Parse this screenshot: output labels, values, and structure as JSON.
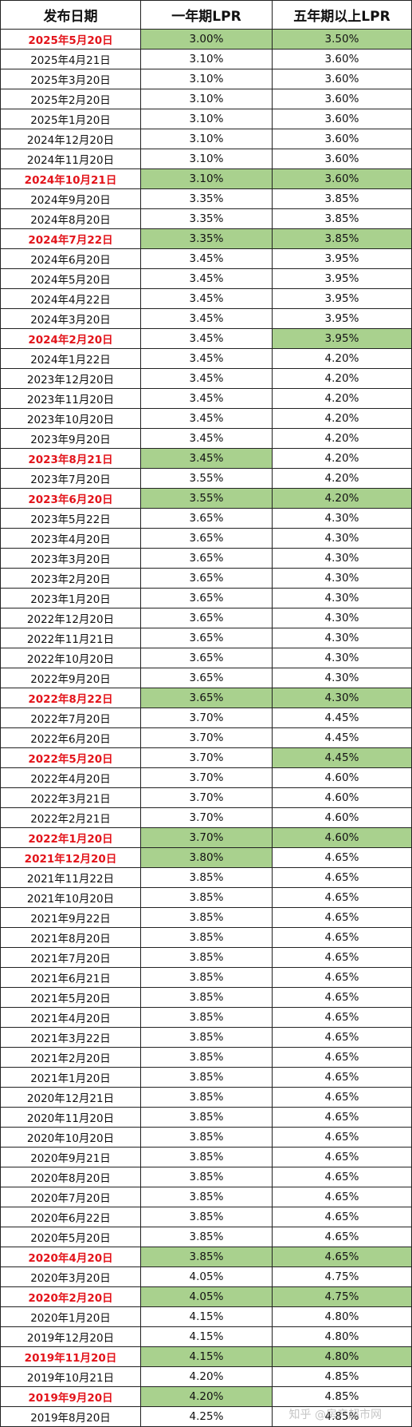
{
  "headers": {
    "date": "发布日期",
    "one_year": "一年期LPR",
    "five_year": "五年期以上LPR"
  },
  "colors": {
    "highlight_text": "#e3141b",
    "highlight_fill": "#a9d18e"
  },
  "watermark": "知乎 @房产超市网",
  "rows": [
    {
      "date": "2025年5月20日",
      "one": "3.00%",
      "five": "3.50%",
      "red": true,
      "g1": true,
      "g5": true
    },
    {
      "date": "2025年4月21日",
      "one": "3.10%",
      "five": "3.60%"
    },
    {
      "date": "2025年3月20日",
      "one": "3.10%",
      "five": "3.60%"
    },
    {
      "date": "2025年2月20日",
      "one": "3.10%",
      "five": "3.60%"
    },
    {
      "date": "2025年1月20日",
      "one": "3.10%",
      "five": "3.60%"
    },
    {
      "date": "2024年12月20日",
      "one": "3.10%",
      "five": "3.60%"
    },
    {
      "date": "2024年11月20日",
      "one": "3.10%",
      "five": "3.60%"
    },
    {
      "date": "2024年10月21日",
      "one": "3.10%",
      "five": "3.60%",
      "red": true,
      "g1": true,
      "g5": true
    },
    {
      "date": "2024年9月20日",
      "one": "3.35%",
      "five": "3.85%"
    },
    {
      "date": "2024年8月20日",
      "one": "3.35%",
      "five": "3.85%"
    },
    {
      "date": "2024年7月22日",
      "one": "3.35%",
      "five": "3.85%",
      "red": true,
      "g1": true,
      "g5": true
    },
    {
      "date": "2024年6月20日",
      "one": "3.45%",
      "five": "3.95%"
    },
    {
      "date": "2024年5月20日",
      "one": "3.45%",
      "five": "3.95%"
    },
    {
      "date": "2024年4月22日",
      "one": "3.45%",
      "five": "3.95%"
    },
    {
      "date": "2024年3月20日",
      "one": "3.45%",
      "five": "3.95%"
    },
    {
      "date": "2024年2月20日",
      "one": "3.45%",
      "five": "3.95%",
      "red": true,
      "g5": true
    },
    {
      "date": "2024年1月22日",
      "one": "3.45%",
      "five": "4.20%"
    },
    {
      "date": "2023年12月20日",
      "one": "3.45%",
      "five": "4.20%"
    },
    {
      "date": "2023年11月20日",
      "one": "3.45%",
      "five": "4.20%"
    },
    {
      "date": "2023年10月20日",
      "one": "3.45%",
      "five": "4.20%"
    },
    {
      "date": "2023年9月20日",
      "one": "3.45%",
      "five": "4.20%"
    },
    {
      "date": "2023年8月21日",
      "one": "3.45%",
      "five": "4.20%",
      "red": true,
      "g1": true
    },
    {
      "date": "2023年7月20日",
      "one": "3.55%",
      "five": "4.20%"
    },
    {
      "date": "2023年6月20日",
      "one": "3.55%",
      "five": "4.20%",
      "red": true,
      "g1": true,
      "g5": true
    },
    {
      "date": "2023年5月22日",
      "one": "3.65%",
      "five": "4.30%"
    },
    {
      "date": "2023年4月20日",
      "one": "3.65%",
      "five": "4.30%"
    },
    {
      "date": "2023年3月20日",
      "one": "3.65%",
      "five": "4.30%"
    },
    {
      "date": "2023年2月20日",
      "one": "3.65%",
      "five": "4.30%"
    },
    {
      "date": "2023年1月20日",
      "one": "3.65%",
      "five": "4.30%"
    },
    {
      "date": "2022年12月20日",
      "one": "3.65%",
      "five": "4.30%"
    },
    {
      "date": "2022年11月21日",
      "one": "3.65%",
      "five": "4.30%"
    },
    {
      "date": "2022年10月20日",
      "one": "3.65%",
      "five": "4.30%"
    },
    {
      "date": "2022年9月20日",
      "one": "3.65%",
      "five": "4.30%"
    },
    {
      "date": "2022年8月22日",
      "one": "3.65%",
      "five": "4.30%",
      "red": true,
      "g1": true,
      "g5": true
    },
    {
      "date": "2022年7月20日",
      "one": "3.70%",
      "five": "4.45%"
    },
    {
      "date": "2022年6月20日",
      "one": "3.70%",
      "five": "4.45%"
    },
    {
      "date": "2022年5月20日",
      "one": "3.70%",
      "five": "4.45%",
      "red": true,
      "g5": true
    },
    {
      "date": "2022年4月20日",
      "one": "3.70%",
      "five": "4.60%"
    },
    {
      "date": "2022年3月21日",
      "one": "3.70%",
      "five": "4.60%"
    },
    {
      "date": "2022年2月21日",
      "one": "3.70%",
      "five": "4.60%"
    },
    {
      "date": "2022年1月20日",
      "one": "3.70%",
      "five": "4.60%",
      "red": true,
      "g1": true,
      "g5": true
    },
    {
      "date": "2021年12月20日",
      "one": "3.80%",
      "five": "4.65%",
      "red": true,
      "g1": true
    },
    {
      "date": "2021年11月22日",
      "one": "3.85%",
      "five": "4.65%"
    },
    {
      "date": "2021年10月20日",
      "one": "3.85%",
      "five": "4.65%"
    },
    {
      "date": "2021年9月22日",
      "one": "3.85%",
      "five": "4.65%"
    },
    {
      "date": "2021年8月20日",
      "one": "3.85%",
      "five": "4.65%"
    },
    {
      "date": "2021年7月20日",
      "one": "3.85%",
      "five": "4.65%"
    },
    {
      "date": "2021年6月21日",
      "one": "3.85%",
      "five": "4.65%"
    },
    {
      "date": "2021年5月20日",
      "one": "3.85%",
      "five": "4.65%"
    },
    {
      "date": "2021年4月20日",
      "one": "3.85%",
      "five": "4.65%"
    },
    {
      "date": "2021年3月22日",
      "one": "3.85%",
      "five": "4.65%"
    },
    {
      "date": "2021年2月20日",
      "one": "3.85%",
      "five": "4.65%"
    },
    {
      "date": "2021年1月20日",
      "one": "3.85%",
      "five": "4.65%"
    },
    {
      "date": "2020年12月21日",
      "one": "3.85%",
      "five": "4.65%"
    },
    {
      "date": "2020年11月20日",
      "one": "3.85%",
      "five": "4.65%"
    },
    {
      "date": "2020年10月20日",
      "one": "3.85%",
      "five": "4.65%"
    },
    {
      "date": "2020年9月21日",
      "one": "3.85%",
      "five": "4.65%"
    },
    {
      "date": "2020年8月20日",
      "one": "3.85%",
      "five": "4.65%"
    },
    {
      "date": "2020年7月20日",
      "one": "3.85%",
      "five": "4.65%"
    },
    {
      "date": "2020年6月22日",
      "one": "3.85%",
      "five": "4.65%"
    },
    {
      "date": "2020年5月20日",
      "one": "3.85%",
      "five": "4.65%"
    },
    {
      "date": "2020年4月20日",
      "one": "3.85%",
      "five": "4.65%",
      "red": true,
      "g1": true,
      "g5": true
    },
    {
      "date": "2020年3月20日",
      "one": "4.05%",
      "five": "4.75%"
    },
    {
      "date": "2020年2月20日",
      "one": "4.05%",
      "five": "4.75%",
      "red": true,
      "g1": true,
      "g5": true
    },
    {
      "date": "2020年1月20日",
      "one": "4.15%",
      "five": "4.80%"
    },
    {
      "date": "2019年12月20日",
      "one": "4.15%",
      "five": "4.80%"
    },
    {
      "date": "2019年11月20日",
      "one": "4.15%",
      "five": "4.80%",
      "red": true,
      "g1": true,
      "g5": true
    },
    {
      "date": "2019年10月21日",
      "one": "4.20%",
      "five": "4.85%"
    },
    {
      "date": "2019年9月20日",
      "one": "4.20%",
      "five": "4.85%",
      "red": true,
      "g1": true
    },
    {
      "date": "2019年8月20日",
      "one": "4.25%",
      "five": "4.85%"
    }
  ]
}
